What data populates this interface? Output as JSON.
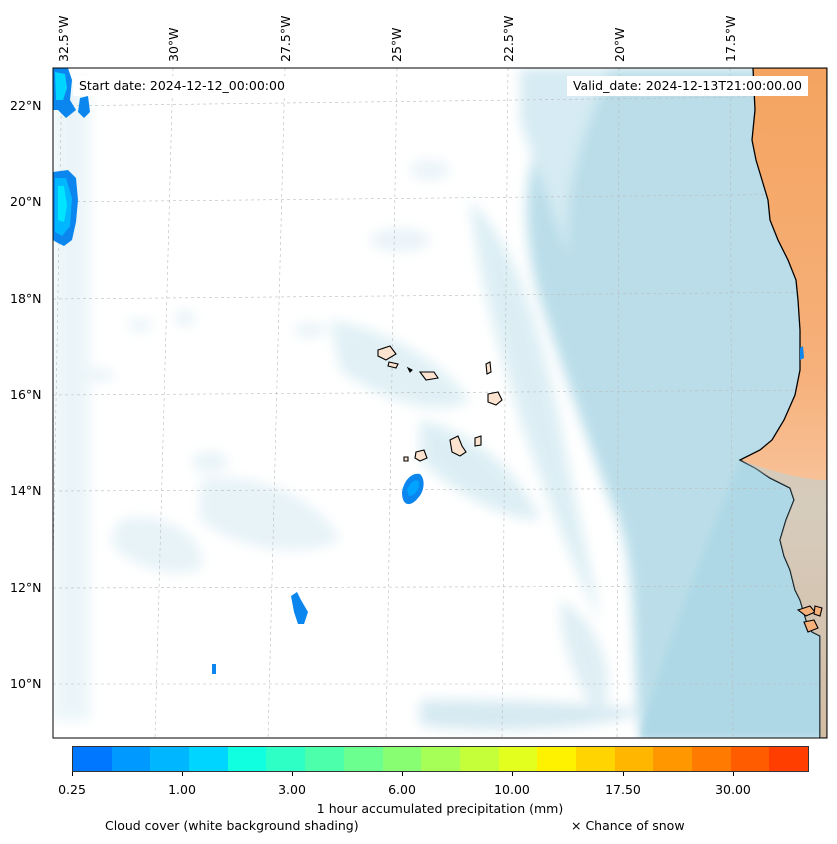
{
  "start_date_text": "Start date: 2024-12-12_00:00:00",
  "valid_date_text": "Valid_date: 2024-12-13T21:00:00.00",
  "lon_labels": [
    "32.5°W",
    "30°W",
    "27.5°W",
    "25°W",
    "22.5°W",
    "20°W",
    "17.5°W"
  ],
  "lat_labels": [
    "22°N",
    "20°N",
    "18°N",
    "16°N",
    "14°N",
    "12°N",
    "10°N"
  ],
  "colorbar": {
    "colors": [
      "#0077ff",
      "#0099ff",
      "#00b7ff",
      "#00d5ff",
      "#10ffe0",
      "#2effc4",
      "#4cffaa",
      "#6aff8e",
      "#88ff72",
      "#a6ff56",
      "#c4ff3a",
      "#e2ff1e",
      "#fff200",
      "#ffd400",
      "#ffb600",
      "#ff9800",
      "#ff7a00",
      "#ff5c00",
      "#ff3e00"
    ],
    "tick_labels": [
      "0.25",
      "1.00",
      "3.00",
      "6.00",
      "10.00",
      "17.50",
      "30.00"
    ],
    "label": "1 hour accumulated precipitation (mm)"
  },
  "legend": {
    "cloud_cover": "Cloud cover (white background shading)",
    "snow": "× Chance of snow"
  },
  "colors": {
    "cloud": "#aed8e6",
    "land_sahara": "#f4a460",
    "precip_blue": "#0a86ee",
    "precip_cyan": "#00e5ff"
  }
}
